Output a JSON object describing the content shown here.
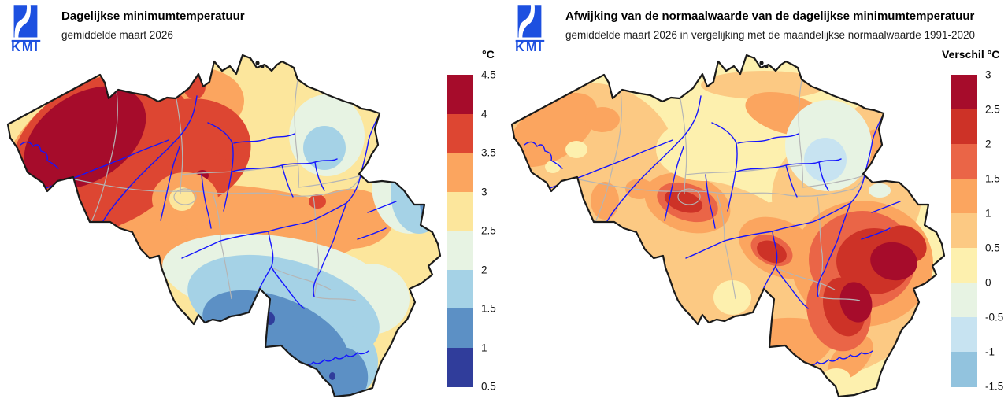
{
  "colors": {
    "logo_blue": "#1d50e0",
    "country_border": "#1a1a1a",
    "river_blue": "#1414ff",
    "province_border": "#b5b5b5",
    "background": "#ffffff"
  },
  "panels": [
    {
      "logo_text": "KMI",
      "title": "Dagelijkse minimumtemperatuur",
      "subtitle": "gemiddelde maart 2026",
      "colorbar": {
        "unit_label": "°C",
        "tick_labels": [
          "4.5",
          "4",
          "3.5",
          "3",
          "2.5",
          "2",
          "1.5",
          "1",
          "0.5"
        ],
        "segment_colors_top_to_bottom": [
          "#a60c2b",
          "#dd4632",
          "#fba55f",
          "#fce69c",
          "#e7f3e3",
          "#a5d2e6",
          "#5c90c5",
          "#303d9b"
        ]
      }
    },
    {
      "logo_text": "KMI",
      "title": "Afwijking van de normaalwaarde van de dagelijkse minimumtemperatuur",
      "subtitle": "gemiddelde maart 2026 in vergelijking met de maandelijkse normaalwaarde 1991-2020",
      "colorbar": {
        "unit_label": "Verschil °C",
        "tick_labels": [
          "3",
          "2.5",
          "2",
          "1.5",
          "1",
          "0.5",
          "0",
          "-0.5",
          "-1",
          "-1.5"
        ],
        "segment_colors_top_to_bottom": [
          "#a60c2b",
          "#cd3227",
          "#ea6547",
          "#fba55f",
          "#fcc983",
          "#fdf0ae",
          "#e7f3e3",
          "#c7e3f1",
          "#92c3de"
        ]
      }
    }
  ]
}
